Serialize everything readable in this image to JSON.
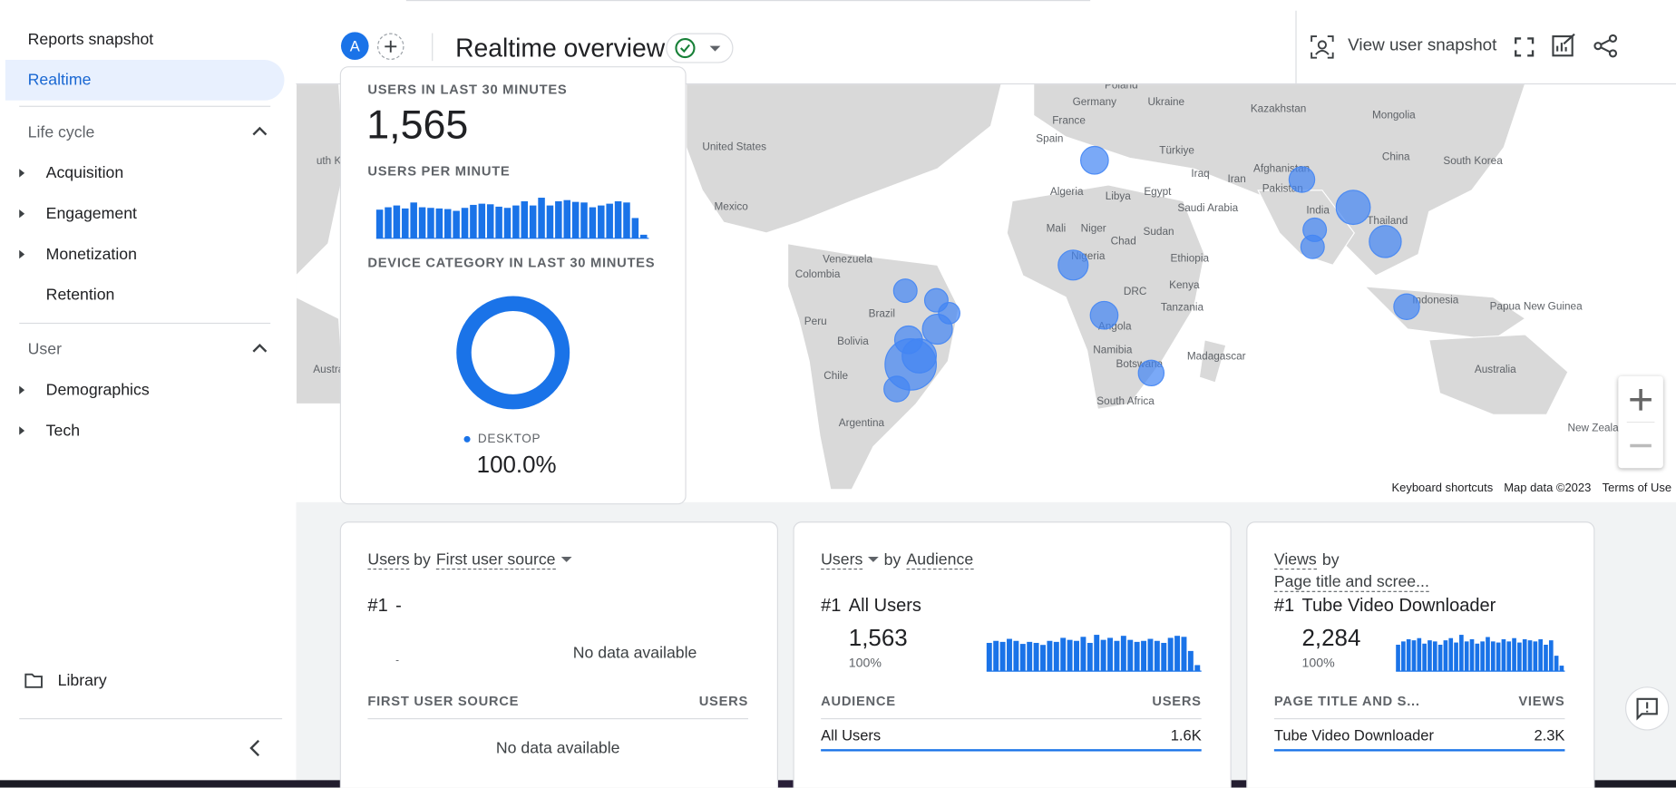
{
  "sidebar": {
    "items": [
      "Reports snapshot",
      "Realtime"
    ],
    "sections": [
      {
        "title": "Life cycle",
        "items": [
          "Acquisition",
          "Engagement",
          "Monetization",
          "Retention"
        ]
      },
      {
        "title": "User",
        "items": [
          "Demographics",
          "Tech"
        ]
      }
    ],
    "library": "Library"
  },
  "header": {
    "avatar": "A",
    "title": "Realtime overview",
    "action": "View user snapshot"
  },
  "summary": {
    "users_label": "USERS IN LAST 30 MINUTES",
    "users": "1,565",
    "per_minute_label": "USERS PER MINUTE",
    "per_minute": [
      48,
      52,
      55,
      50,
      60,
      52,
      51,
      50,
      49,
      46,
      51,
      56,
      58,
      57,
      53,
      51,
      55,
      62,
      55,
      68,
      55,
      62,
      64,
      61,
      60,
      52,
      55,
      58,
      62,
      60,
      34,
      6
    ],
    "device_label": "DEVICE CATEGORY IN LAST 30 MINUTES",
    "device": {
      "name": "DESKTOP",
      "value": 100,
      "value_label": "100.0%"
    }
  },
  "map": {
    "labels": [
      "Poland",
      "Germany",
      "Ukraine",
      "Kazakhstan",
      "Mongolia",
      "France",
      "Spain",
      "United States",
      "Türkiye",
      "China",
      "South Korea",
      "Afghanistan",
      "Iraq",
      "Iran",
      "Pakistan",
      "Algeria",
      "Libya",
      "Egypt",
      "Mexico",
      "Saudi Arabia",
      "India",
      "Thailand",
      "Mali",
      "Niger",
      "Sudan",
      "Chad",
      "Nigeria",
      "Ethiopia",
      "Venezuela",
      "Colombia",
      "DRC",
      "Kenya",
      "Indonesia",
      "Papua New Guinea",
      "Brazil",
      "Tanzania",
      "Peru",
      "Angola",
      "Bolivia",
      "Namibia",
      "Madagascar",
      "Botswana",
      "Chile",
      "Australia",
      "South Africa",
      "Argentina",
      "New Zealand",
      "uth Korea",
      "Austra"
    ],
    "bubbles": [
      42,
      36,
      64,
      30,
      30,
      56,
      36,
      49,
      30,
      30,
      25,
      49,
      42,
      64,
      144,
      36,
      42,
      36
    ],
    "footer": [
      "Keyboard shortcuts",
      "Map data ©2023",
      "Terms of Use"
    ]
  },
  "cards": [
    {
      "metric": "Users",
      "by": "by",
      "dimension": "First user source",
      "rank": "#1",
      "top": "-",
      "empty_chart": "No data available",
      "axis_label": "-",
      "columns": [
        "FIRST USER SOURCE",
        "USERS"
      ],
      "empty_table": "No data available"
    },
    {
      "metric": "Users",
      "by": "by",
      "dimension": "Audience",
      "rank": "#1",
      "top": "All Users",
      "value": "1,563",
      "share": "100%",
      "bars": [
        28,
        30,
        29,
        32,
        30,
        27,
        29,
        28,
        26,
        30,
        29,
        33,
        31,
        30,
        34,
        28,
        36,
        31,
        33,
        30,
        35,
        31,
        29,
        30,
        32,
        30,
        28,
        33,
        35,
        34,
        20,
        6
      ],
      "columns": [
        "AUDIENCE",
        "USERS"
      ],
      "rows": [
        [
          "All Users",
          "1.6K"
        ]
      ]
    },
    {
      "metric": "Views",
      "by": "by",
      "dimension": "Page title and scree...",
      "rank": "#1",
      "top": "Tube Video Downloader",
      "value": "2,284",
      "share": "100%",
      "bars": [
        24,
        27,
        29,
        28,
        30,
        25,
        28,
        27,
        24,
        28,
        30,
        26,
        33,
        27,
        29,
        25,
        27,
        31,
        27,
        26,
        29,
        27,
        30,
        26,
        29,
        28,
        27,
        29,
        24,
        28,
        14,
        5
      ],
      "columns": [
        "PAGE TITLE AND S...",
        "VIEWS"
      ],
      "rows": [
        [
          "Tube Video Downloader",
          "2.3K"
        ]
      ]
    }
  ]
}
